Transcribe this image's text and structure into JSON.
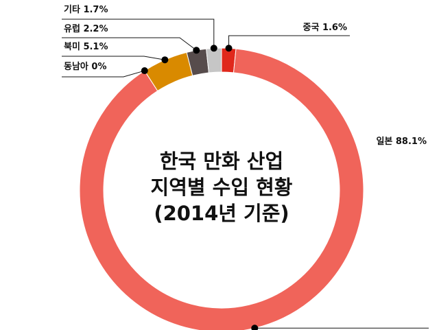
{
  "chart_data": {
    "type": "donut",
    "title": [
      "한국 만화 산업",
      "지역별 수입 현황",
      "(2014년 기준)"
    ],
    "categories": [
      "중국",
      "일본",
      "동남아",
      "북미",
      "유럽",
      "기타"
    ],
    "values": [
      1.6,
      88.1,
      0,
      5.1,
      2.2,
      1.7
    ],
    "value_labels": [
      "1.6%",
      "88.1%",
      "0%",
      "5.1%",
      "2.2%",
      "1.7%"
    ],
    "colors": [
      "#e0281c",
      "#f0645a",
      "#f0645a",
      "#d98a00",
      "#574c4c",
      "#c6c6c6"
    ]
  }
}
